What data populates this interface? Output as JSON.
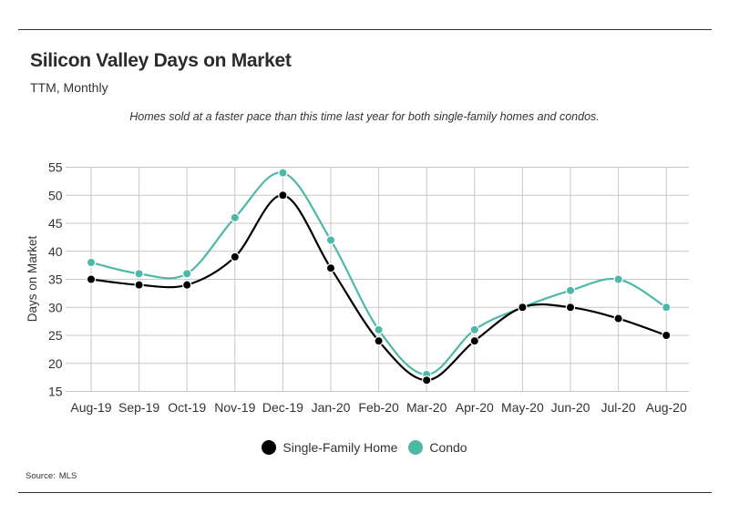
{
  "header": {
    "title": "Silicon Valley Days on Market",
    "subtitle": "TTM, Monthly",
    "annotation": "Homes sold at a faster pace than this time last year for both single-family homes and condos."
  },
  "footer": {
    "source_label": "Source:",
    "source_value": "MLS"
  },
  "legend": {
    "items": [
      {
        "label": "Single-Family Home",
        "color": "#000000"
      },
      {
        "label": "Condo",
        "color": "#4db8a8"
      }
    ]
  },
  "chart_data": {
    "type": "line",
    "smooth": true,
    "categories": [
      "Aug-19",
      "Sep-19",
      "Oct-19",
      "Nov-19",
      "Dec-19",
      "Jan-20",
      "Feb-20",
      "Mar-20",
      "Apr-20",
      "May-20",
      "Jun-20",
      "Jul-20",
      "Aug-20"
    ],
    "series": [
      {
        "name": "Single-Family Home",
        "color": "#000000",
        "values": [
          35,
          34,
          34,
          39,
          50,
          37,
          24,
          17,
          24,
          30,
          30,
          28,
          25
        ]
      },
      {
        "name": "Condo",
        "color": "#4db8a8",
        "values": [
          38,
          36,
          36,
          46,
          54,
          42,
          26,
          18,
          26,
          30,
          33,
          35,
          30
        ]
      }
    ],
    "title": "Silicon Valley Days on Market",
    "subtitle": "TTM, Monthly",
    "xlabel": "",
    "ylabel": "Days on Market",
    "ylim": [
      15,
      55
    ],
    "yticks": [
      15,
      20,
      25,
      30,
      35,
      40,
      45,
      50,
      55
    ],
    "grid": true,
    "legend_position": "bottom"
  }
}
